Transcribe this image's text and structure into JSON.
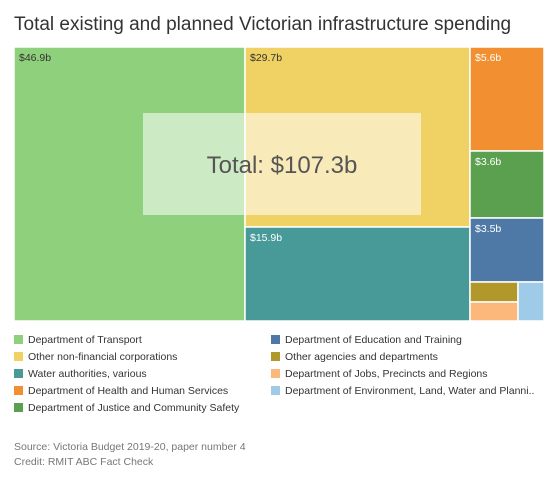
{
  "chart_data": {
    "type": "treemap",
    "title": "Total existing and planned Victorian infrastructure spending",
    "total_label": "Total: $107.3b",
    "unit": "$b",
    "series": [
      {
        "name": "Department of Transport",
        "value": 46.9,
        "label": "$46.9b",
        "color": "#8fd07c"
      },
      {
        "name": "Other non-financial corporations",
        "value": 29.7,
        "label": "$29.7b",
        "color": "#efd164"
      },
      {
        "name": "Water authorities, various",
        "value": 15.9,
        "label": "$15.9b",
        "color": "#479a97"
      },
      {
        "name": "Department of Health and Human Services",
        "value": 5.6,
        "label": "$5.6b",
        "color": "#f28f30"
      },
      {
        "name": "Department of Justice and Community Safety",
        "value": 3.6,
        "label": "$3.6b",
        "color": "#5aa04f"
      },
      {
        "name": "Department of Education and Training",
        "value": 3.5,
        "label": "$3.5b",
        "color": "#4e79a7"
      },
      {
        "name": "Other agencies and departments",
        "value": 1.2,
        "label": "",
        "color": "#b2982a"
      },
      {
        "name": "Department of Jobs, Precincts and Regions",
        "value": 0.5,
        "label": "",
        "color": "#fcb87a"
      },
      {
        "name": "Department of Environment, Land, Water and Planni..",
        "value": 0.4,
        "label": "",
        "color": "#a0cbe8"
      }
    ]
  },
  "source": "Source: Victoria Budget 2019-20, paper number 4",
  "credit": "Credit: RMIT ABC Fact Check"
}
